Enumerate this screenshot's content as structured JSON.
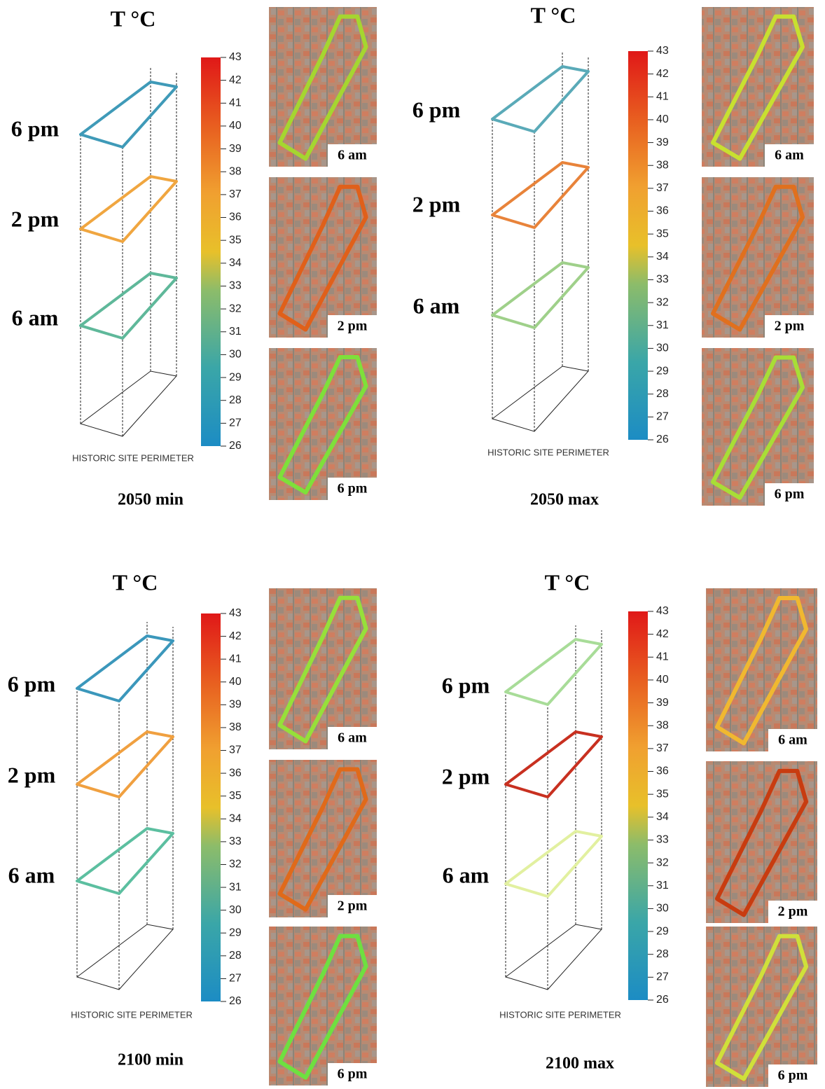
{
  "panels": [
    {
      "unit": "T °C",
      "colorbar": {
        "lim": [
          26,
          43
        ],
        "ticks": [
          26,
          27,
          28,
          29,
          30,
          31,
          32,
          33,
          34,
          35,
          36,
          37,
          38,
          39,
          40,
          41,
          42,
          43
        ]
      },
      "layers": [
        {
          "label": "6 pm",
          "color": "#3f9ab8"
        },
        {
          "label": "2 pm",
          "color": "#f0a640"
        },
        {
          "label": "6 am",
          "color": "#5fb89a"
        }
      ],
      "base_label": "HISTORIC SITE PERIMETER",
      "caption": "2050 min",
      "maps": [
        {
          "label": "6 am",
          "color": "#a5d630"
        },
        {
          "label": "2 pm",
          "color": "#e0601a"
        },
        {
          "label": "6 pm",
          "color": "#7ee03a"
        }
      ]
    },
    {
      "unit": "T °C",
      "colorbar": {
        "lim": [
          26,
          43
        ],
        "ticks": [
          26,
          27,
          28,
          29,
          30,
          31,
          32,
          33,
          34,
          35,
          36,
          37,
          38,
          39,
          40,
          41,
          42,
          43
        ]
      },
      "layers": [
        {
          "label": "6 pm",
          "color": "#5aaab8"
        },
        {
          "label": "2 pm",
          "color": "#e8833a"
        },
        {
          "label": "6 am",
          "color": "#9fd08a"
        }
      ],
      "base_label": "HISTORIC SITE PERIMETER",
      "caption": "2050 max",
      "maps": [
        {
          "label": "6 am",
          "color": "#c8e030"
        },
        {
          "label": "2 pm",
          "color": "#e0701e"
        },
        {
          "label": "6 pm",
          "color": "#a8de36"
        }
      ]
    },
    {
      "unit": "T °C",
      "colorbar": {
        "lim": [
          26,
          43
        ],
        "ticks": [
          26,
          27,
          28,
          29,
          30,
          31,
          32,
          33,
          34,
          35,
          36,
          37,
          38,
          39,
          40,
          41,
          42,
          43
        ]
      },
      "layers": [
        {
          "label": "6 pm",
          "color": "#3b97bb"
        },
        {
          "label": "2 pm",
          "color": "#f0a040"
        },
        {
          "label": "6 am",
          "color": "#5cbfa0"
        }
      ],
      "base_label": "HISTORIC SITE PERIMETER",
      "caption": "2100 min",
      "maps": [
        {
          "label": "6 am",
          "color": "#96e03a"
        },
        {
          "label": "2 pm",
          "color": "#e06a1a"
        },
        {
          "label": "6 pm",
          "color": "#6ee040"
        }
      ]
    },
    {
      "unit": "T °C",
      "colorbar": {
        "lim": [
          26,
          43
        ],
        "ticks": [
          26,
          27,
          28,
          29,
          30,
          31,
          32,
          33,
          34,
          35,
          36,
          37,
          38,
          39,
          40,
          41,
          42,
          43
        ]
      },
      "layers": [
        {
          "label": "6 pm",
          "color": "#a8dc98"
        },
        {
          "label": "2 pm",
          "color": "#c83020"
        },
        {
          "label": "6 am",
          "color": "#e2f0a0"
        }
      ],
      "base_label": "HISTORIC SITE PERIMETER",
      "caption": "2100 max",
      "maps": [
        {
          "label": "6 am",
          "color": "#f0b830"
        },
        {
          "label": "2 pm",
          "color": "#c83c10"
        },
        {
          "label": "6 pm",
          "color": "#d0e03a"
        }
      ]
    }
  ]
}
